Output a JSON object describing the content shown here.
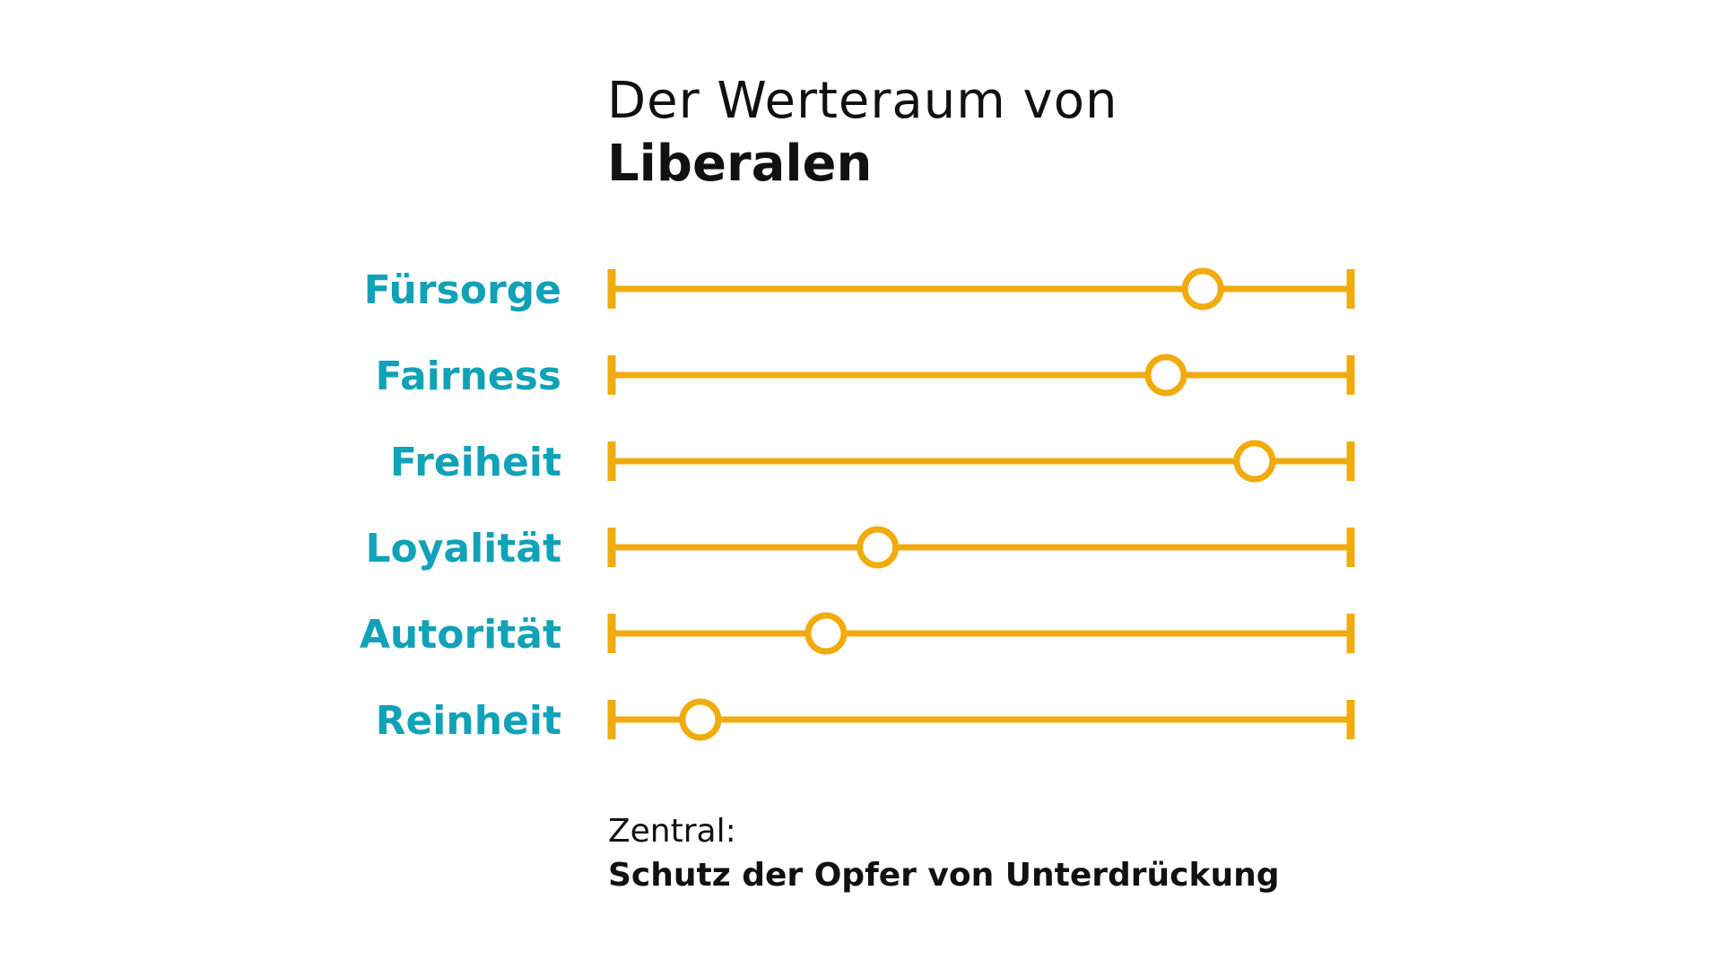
{
  "title": {
    "line1": "Der Werteraum von",
    "line2": "Liberalen"
  },
  "footer": {
    "line1": "Zentral:",
    "line2": "Schutz der Opfer von Unterdrückung"
  },
  "colors": {
    "scale": "#F0AC0E",
    "label": "#12A2B8",
    "text": "#111111",
    "marker_fill": "#FFFFFF"
  },
  "chart_data": {
    "type": "scatter",
    "title": "Der Werteraum von Liberalen",
    "xlim": [
      0,
      1
    ],
    "grid": false,
    "legend": "none",
    "categories": [
      "Fürsorge",
      "Fairness",
      "Freiheit",
      "Loyalität",
      "Autorität",
      "Reinheit"
    ],
    "values": [
      0.8,
      0.75,
      0.87,
      0.36,
      0.29,
      0.12
    ]
  }
}
